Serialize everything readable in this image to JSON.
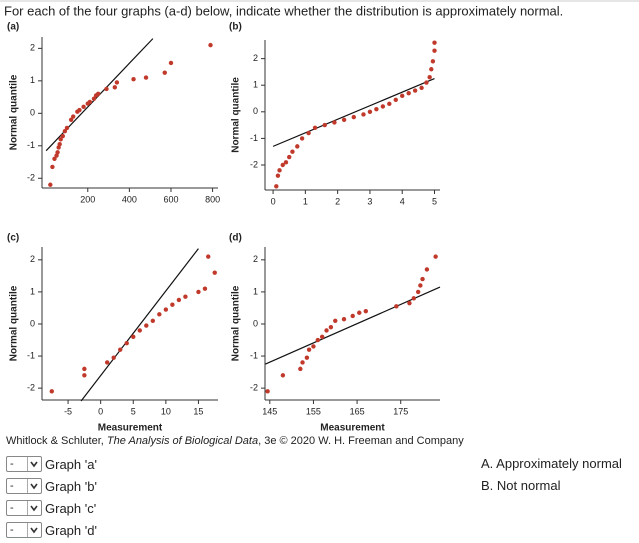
{
  "question": "For each of the four graphs (a-d) below, indicate whether the distribution is approximately normal.",
  "chart_data": [
    {
      "type": "scatter",
      "label": "(a)",
      "y_label": "Normal quantile",
      "color": "#c0392b",
      "x": [
        20,
        30,
        40,
        50,
        55,
        60,
        65,
        70,
        80,
        90,
        100,
        120,
        130,
        150,
        160,
        180,
        200,
        210,
        230,
        240,
        250,
        290,
        330,
        340,
        420,
        480,
        570,
        600,
        790
      ],
      "values": [
        -2.2,
        -1.65,
        -1.4,
        -1.3,
        -1.2,
        -1.05,
        -0.95,
        -0.8,
        -0.7,
        -0.55,
        -0.45,
        -0.2,
        -0.1,
        0.05,
        0.1,
        0.2,
        0.3,
        0.35,
        0.45,
        0.55,
        0.6,
        0.75,
        0.8,
        0.95,
        1.05,
        1.1,
        1.25,
        1.55,
        2.1
      ],
      "line": {
        "x": [
          0,
          513
        ],
        "y": [
          -1.15,
          2.3
        ],
        "color": "#111111"
      },
      "xlim": [
        -20,
        826
      ],
      "ylim": [
        -2.3,
        2.35
      ],
      "xticks": [
        200,
        400,
        600,
        800
      ],
      "yticks": [
        -2,
        -1,
        0,
        1,
        2
      ]
    },
    {
      "type": "scatter",
      "label": "(b)",
      "y_label": "Normal quantile",
      "color": "#c0392b",
      "x": [
        0.1,
        0.15,
        0.2,
        0.3,
        0.4,
        0.5,
        0.6,
        0.75,
        0.9,
        1.1,
        1.3,
        1.6,
        1.9,
        2.2,
        2.5,
        2.8,
        3.0,
        3.2,
        3.4,
        3.6,
        3.8,
        4.0,
        4.2,
        4.4,
        4.6,
        4.75,
        4.85,
        4.9,
        4.95,
        5.0,
        5.0
      ],
      "values": [
        -2.8,
        -2.4,
        -2.2,
        -2.0,
        -1.9,
        -1.7,
        -1.5,
        -1.3,
        -1.0,
        -0.8,
        -0.6,
        -0.5,
        -0.4,
        -0.3,
        -0.2,
        -0.1,
        0,
        0.1,
        0.2,
        0.3,
        0.45,
        0.6,
        0.7,
        0.8,
        0.9,
        1.1,
        1.3,
        1.6,
        1.9,
        2.3,
        2.6
      ],
      "line": {
        "x": [
          0,
          5
        ],
        "y": [
          -1.3,
          1.25
        ],
        "color": "#111111"
      },
      "xlim": [
        -0.25,
        5.17
      ],
      "ylim": [
        -2.94,
        2.7
      ],
      "xticks": [
        0,
        1,
        2,
        3,
        4,
        5
      ],
      "yticks": [
        -2,
        -1,
        0,
        1,
        2
      ]
    },
    {
      "type": "scatter",
      "label": "(c)",
      "y_label": "Normal quantile",
      "x_label": "Measurement",
      "color": "#c0392b",
      "x": [
        -7.5,
        -2.5,
        -2.5,
        1,
        2,
        3,
        4,
        5,
        6,
        7,
        8,
        9,
        10,
        11,
        12,
        13,
        15,
        16,
        17.5,
        16.5
      ],
      "values": [
        -2.1,
        -1.6,
        -1.4,
        -1.2,
        -1.05,
        -0.8,
        -0.6,
        -0.4,
        -0.2,
        -0.05,
        0.1,
        0.3,
        0.45,
        0.6,
        0.75,
        0.85,
        1.0,
        1.1,
        1.6,
        2.1
      ],
      "line": {
        "x": [
          -3,
          15
        ],
        "y": [
          -2.4,
          2.35
        ],
        "color": "#111111"
      },
      "xlim": [
        -9,
        18
      ],
      "ylim": [
        -2.37,
        2.4
      ],
      "xticks": [
        -5,
        0,
        5,
        10,
        15
      ],
      "yticks": [
        -2,
        -1,
        0,
        1,
        2
      ]
    },
    {
      "type": "scatter",
      "label": "(d)",
      "y_label": "Normal quantile",
      "x_label": "Measurement",
      "color": "#c0392b",
      "x": [
        144.5,
        148,
        152,
        152.5,
        153.5,
        154,
        155,
        156,
        157,
        158,
        159,
        160,
        162,
        164,
        165.5,
        167,
        174,
        177,
        178,
        179,
        179.5,
        180,
        181,
        183
      ],
      "values": [
        -2.1,
        -1.6,
        -1.4,
        -1.2,
        -1.05,
        -0.8,
        -0.7,
        -0.5,
        -0.4,
        -0.2,
        -0.1,
        0.1,
        0.15,
        0.25,
        0.35,
        0.4,
        0.55,
        0.65,
        0.8,
        1.0,
        1.2,
        1.4,
        1.7,
        2.1
      ],
      "line": {
        "x": [
          144,
          184
        ],
        "y": [
          -1.25,
          1.15
        ],
        "color": "#111111"
      },
      "xlim": [
        143.9,
        184
      ],
      "ylim": [
        -2.37,
        2.4
      ],
      "xticks": [
        145,
        155,
        165,
        175
      ],
      "yticks": [
        -2,
        -1,
        0,
        1,
        2
      ]
    }
  ],
  "credit": {
    "authors": "Whitlock & Schluter, ",
    "book": "The Analysis of Biological Data",
    "rest": ", 3e © 2020 W. H. Freeman and Company"
  },
  "answers": [
    {
      "selected": "-",
      "label": "Graph 'a'"
    },
    {
      "selected": "-",
      "label": "Graph 'b'"
    },
    {
      "selected": "-",
      "label": "Graph 'c'"
    },
    {
      "selected": "-",
      "label": "Graph 'd'"
    }
  ],
  "options": [
    "A. Approximately normal",
    "B. Not normal"
  ]
}
